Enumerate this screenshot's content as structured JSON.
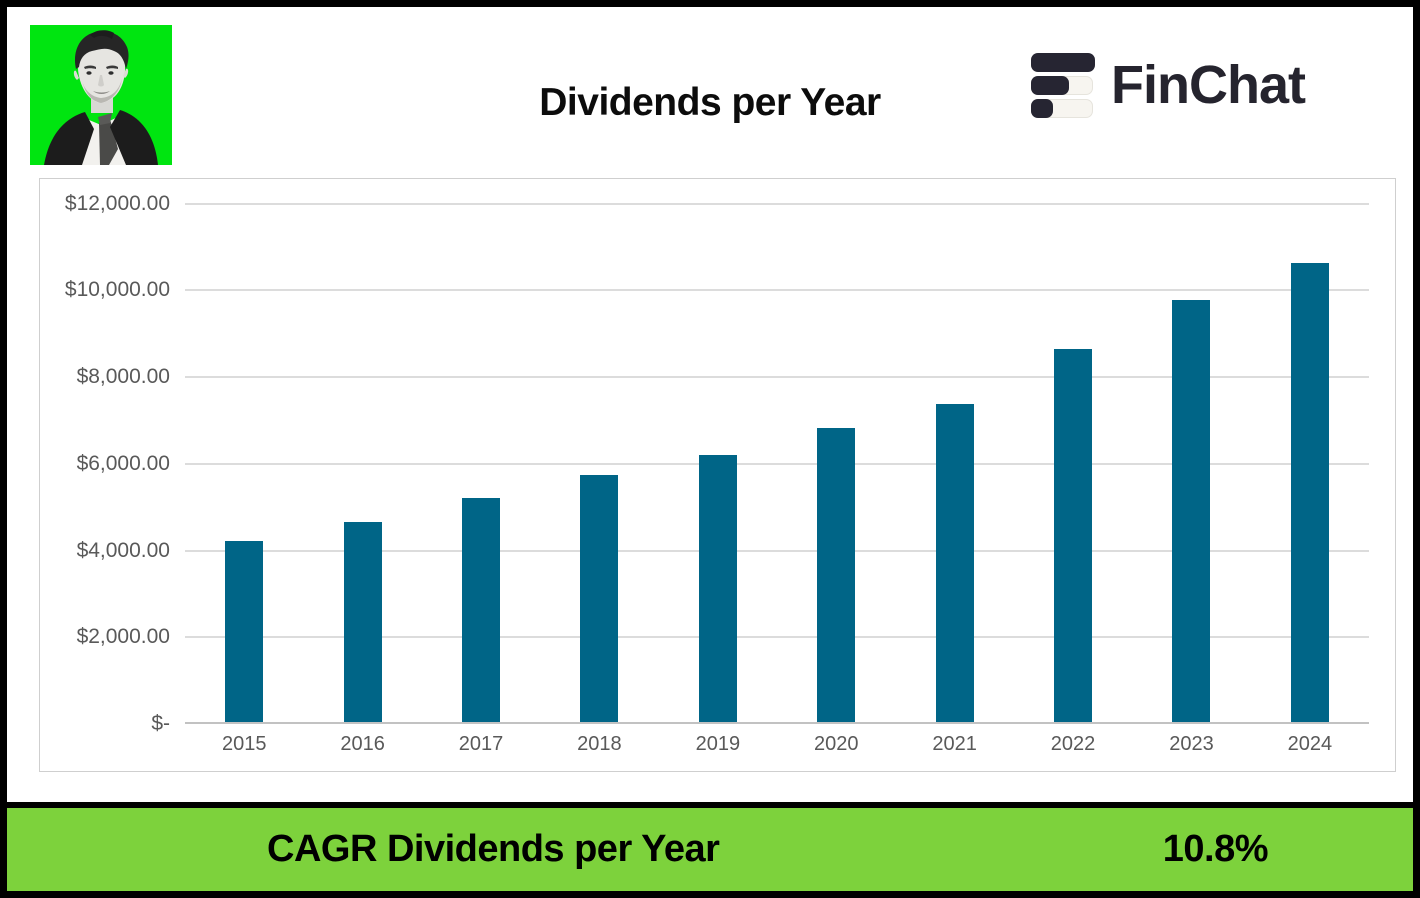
{
  "header": {
    "title": "Dividends per Year",
    "brand": "FinChat",
    "avatar_alt": "black-and-white portrait of a man on bright green background"
  },
  "chart_data": {
    "type": "bar",
    "title": "Dividends per Year",
    "categories": [
      "2015",
      "2016",
      "2017",
      "2018",
      "2019",
      "2020",
      "2021",
      "2022",
      "2023",
      "2024"
    ],
    "values": [
      4220,
      4660,
      5210,
      5750,
      6210,
      6820,
      7370,
      8650,
      9790,
      10640
    ],
    "xlabel": "",
    "ylabel": "",
    "ylim": [
      0,
      12000
    ],
    "grid": true,
    "legend": "none",
    "bar_color": "#006587",
    "y_ticks": [
      {
        "label": "$12,000.00",
        "value": 12000
      },
      {
        "label": "$10,000.00",
        "value": 10000
      },
      {
        "label": "$8,000.00",
        "value": 8000
      },
      {
        "label": "$6,000.00",
        "value": 6000
      },
      {
        "label": "$4,000.00",
        "value": 4000
      },
      {
        "label": "$2,000.00",
        "value": 2000
      },
      {
        "label": "$-",
        "value": 0
      }
    ]
  },
  "footer": {
    "label": "CAGR Dividends per Year",
    "value": "10.8%",
    "bg_color": "#7dd23c"
  },
  "colors": {
    "bar": "#006587",
    "footer_green": "#7dd23c",
    "avatar_green": "#00e510",
    "logo_dark": "#262532",
    "axis_text": "#595959"
  }
}
